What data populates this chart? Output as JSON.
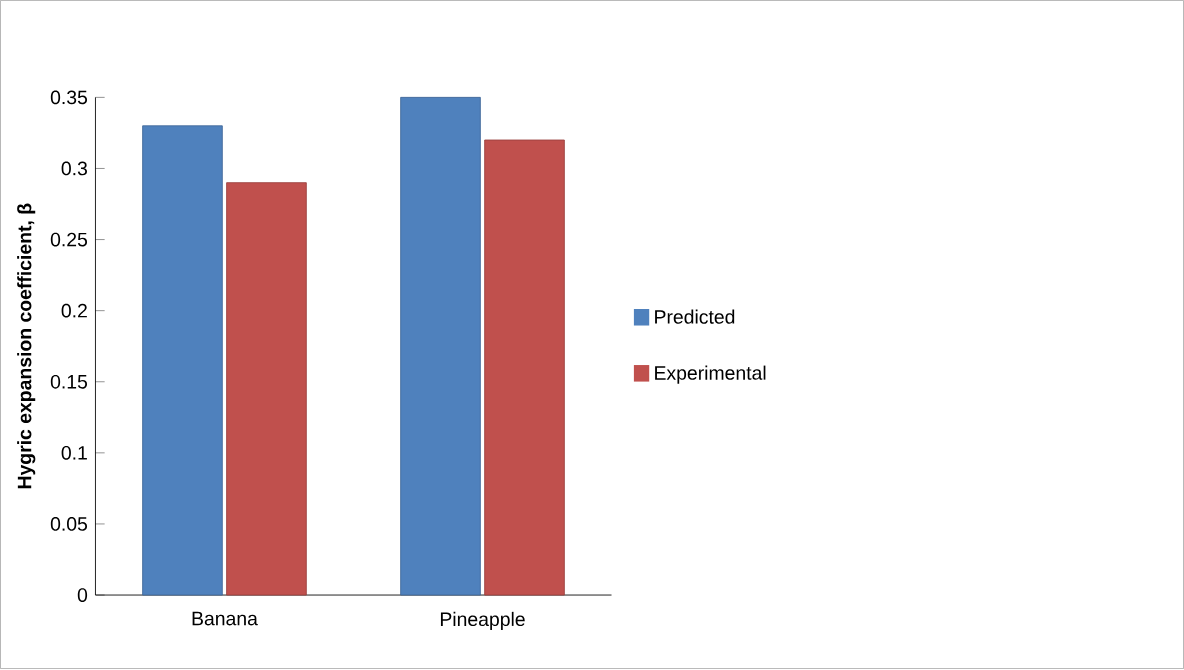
{
  "chart_data": {
    "type": "bar",
    "ylabel": "Hygric expansion coefficient, β",
    "categories": [
      "Banana",
      "Pineapple"
    ],
    "series": [
      {
        "name": "Predicted",
        "color": "#4f81bd",
        "values": [
          0.33,
          0.35
        ]
      },
      {
        "name": "Experimental",
        "color": "#c0504d",
        "values": [
          0.29,
          0.32
        ]
      }
    ],
    "ylim": [
      0,
      0.35
    ],
    "yticks": [
      0,
      0.05,
      0.1,
      0.15,
      0.2,
      0.25,
      0.3,
      0.35
    ],
    "legend": "right"
  }
}
